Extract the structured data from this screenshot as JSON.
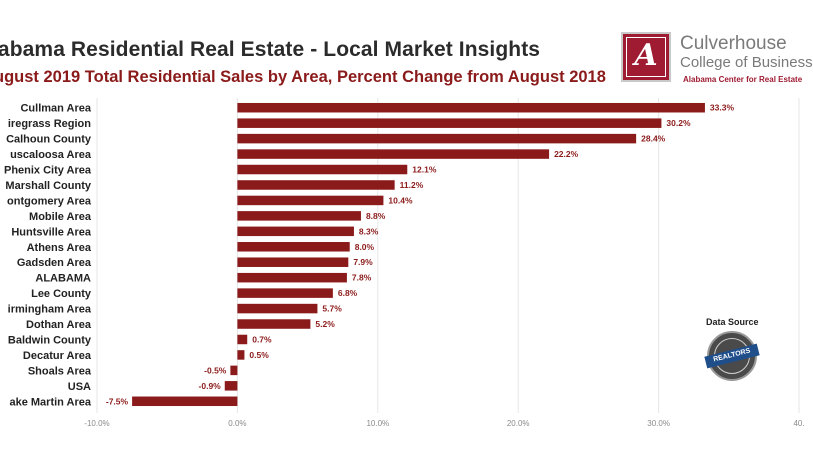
{
  "header": {
    "title": "labama Residential Real Estate - Local Market Insights",
    "subtitle": "ugust 2019 Total Residential Sales by Area, Percent Change from August 2018"
  },
  "logo": {
    "name": "Culverhouse",
    "college": "College of Business",
    "center": "Alabama Center for Real Estate"
  },
  "data_source": {
    "label": "Data Source",
    "seal_text": "REALTORS"
  },
  "colors": {
    "bar": "#8b1a1a",
    "label": "#8b1a1a",
    "axis_text": "#8a8a8a",
    "grid": "#e6e6e6"
  },
  "chart_data": {
    "type": "bar",
    "orientation": "horizontal",
    "categories": [
      "Cullman Area",
      "iregrass Region",
      "Calhoun County",
      "uscaloosa Area",
      "Phenix City Area",
      "Marshall County",
      "ontgomery Area",
      "Mobile Area",
      "Huntsville Area",
      "Athens Area",
      "Gadsden Area",
      "ALABAMA",
      "Lee County",
      "irmingham Area",
      "Dothan Area",
      "Baldwin County",
      "Decatur Area",
      "Shoals Area",
      "USA",
      "ake Martin Area"
    ],
    "values": [
      33.3,
      30.2,
      28.4,
      22.2,
      12.1,
      11.2,
      10.4,
      8.8,
      8.3,
      8.0,
      7.9,
      7.8,
      6.8,
      5.7,
      5.2,
      0.7,
      0.5,
      -0.5,
      -0.9,
      -7.5
    ],
    "value_labels": [
      "33.3%",
      "30.2%",
      "28.4%",
      "22.2%",
      "12.1%",
      "11.2%",
      "10.4%",
      "8.8%",
      "8.3%",
      "8.0%",
      "7.9%",
      "7.8%",
      "6.8%",
      "5.7%",
      "5.2%",
      "0.7%",
      "0.5%",
      "-0.5%",
      "-0.9%",
      "-7.5%"
    ],
    "xticks": [
      -10,
      0,
      10,
      20,
      30,
      40
    ],
    "xtick_labels": [
      "-10.0%",
      "0.0%",
      "10.0%",
      "20.0%",
      "30.0%",
      "40."
    ],
    "xlim": [
      -10,
      40
    ],
    "grid": true,
    "legend": "none"
  }
}
